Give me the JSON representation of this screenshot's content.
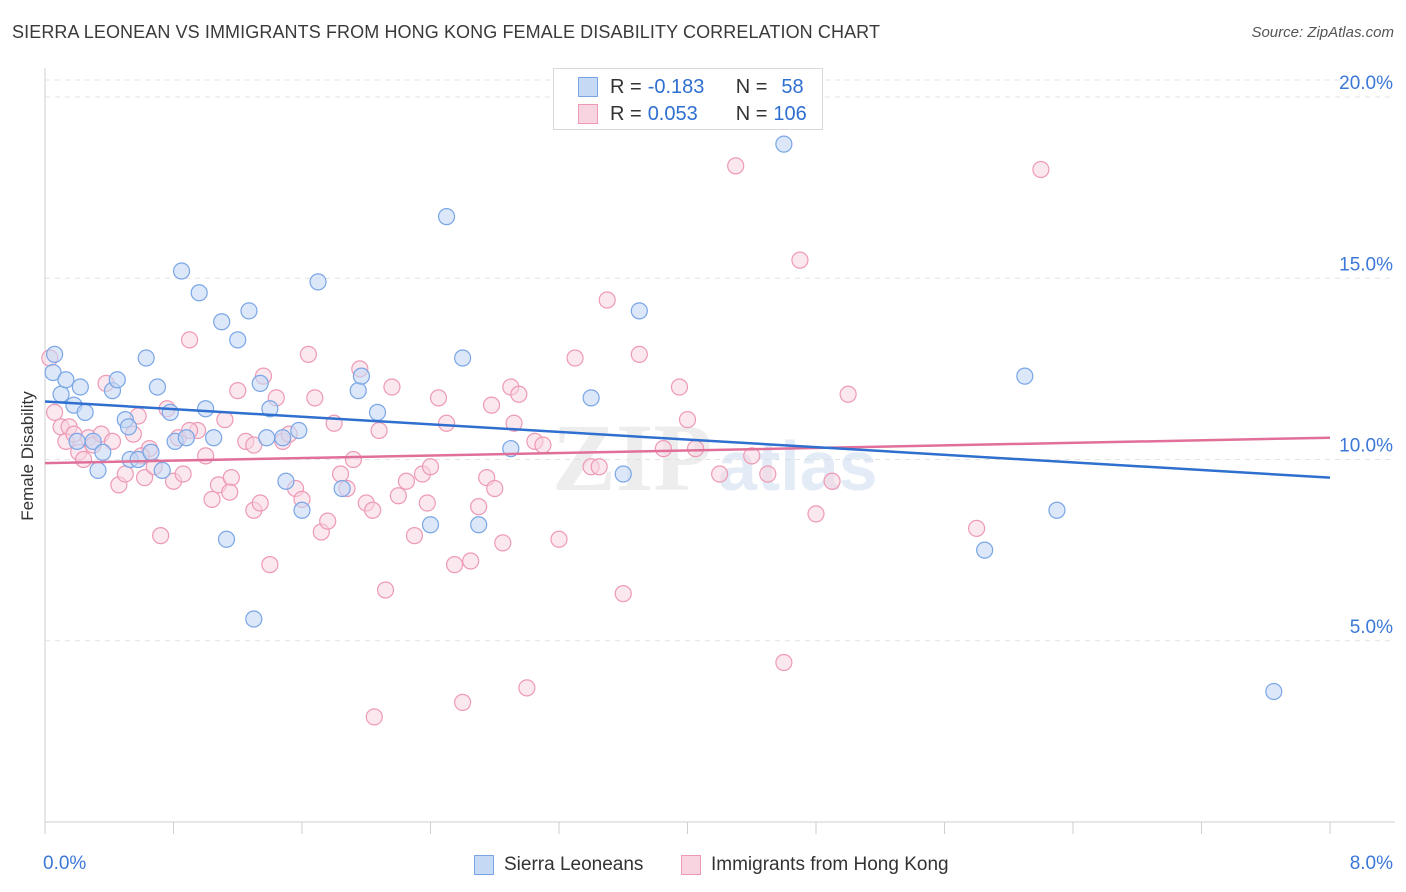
{
  "title": "SIERRA LEONEAN VS IMMIGRANTS FROM HONG KONG FEMALE DISABILITY CORRELATION CHART",
  "source": "Source: ZipAtlas.com",
  "watermark": {
    "zip": "ZIP",
    "atlas": "atlas"
  },
  "legend": {
    "row1": {
      "r_label": "R =",
      "r_value": "-0.183",
      "n_label": "N =",
      "n_value": "58"
    },
    "row2": {
      "r_label": "R =",
      "r_value": "0.053",
      "n_label": "N =",
      "n_value": "106"
    }
  },
  "bottom_legend": {
    "series1": "Sierra Leoneans",
    "series2": "Immigrants from Hong Kong"
  },
  "chart_data": {
    "type": "scatter",
    "title": "SIERRA LEONEAN VS IMMIGRANTS FROM HONG KONG FEMALE DISABILITY CORRELATION CHART",
    "xlabel": "",
    "ylabel": "Female Disability",
    "xlim": [
      0,
      8
    ],
    "ylim": [
      0,
      20.8
    ],
    "x_tick_labels": [
      "0.0%",
      "8.0%"
    ],
    "y_ticks": [
      5,
      10,
      15,
      20
    ],
    "y_tick_labels": [
      "5.0%",
      "10.0%",
      "15.0%",
      "20.0%"
    ],
    "grid": "horizontal dashed",
    "colors": {
      "series1": "#7aa6e6",
      "series1_fill": "#c5d9f5",
      "series1_line": "#2f6fcf",
      "series2": "#ee9ab5",
      "series2_fill": "#f8d3e0",
      "series2_line": "#e0709a",
      "tick_label": "#3c78d8"
    },
    "series": [
      {
        "name": "Sierra Leoneans",
        "trend": [
          [
            0,
            11.6
          ],
          [
            8,
            9.5
          ]
        ],
        "points": [
          [
            0.05,
            12.4
          ],
          [
            0.06,
            12.9
          ],
          [
            0.1,
            11.8
          ],
          [
            0.13,
            12.2
          ],
          [
            0.18,
            11.5
          ],
          [
            0.22,
            12.0
          ],
          [
            0.25,
            11.3
          ],
          [
            0.3,
            10.5
          ],
          [
            0.33,
            9.7
          ],
          [
            0.36,
            10.2
          ],
          [
            0.42,
            11.9
          ],
          [
            0.45,
            12.2
          ],
          [
            0.5,
            11.1
          ],
          [
            0.52,
            10.9
          ],
          [
            0.53,
            10.0
          ],
          [
            0.58,
            10.0
          ],
          [
            0.63,
            12.8
          ],
          [
            0.66,
            10.2
          ],
          [
            0.7,
            12.0
          ],
          [
            0.73,
            9.7
          ],
          [
            0.78,
            11.3
          ],
          [
            0.81,
            10.5
          ],
          [
            0.85,
            15.2
          ],
          [
            0.88,
            10.6
          ],
          [
            0.96,
            14.6
          ],
          [
            1.0,
            11.4
          ],
          [
            1.05,
            10.6
          ],
          [
            1.1,
            13.8
          ],
          [
            1.13,
            7.8
          ],
          [
            1.2,
            13.3
          ],
          [
            1.27,
            14.1
          ],
          [
            1.3,
            5.6
          ],
          [
            1.34,
            12.1
          ],
          [
            1.38,
            10.6
          ],
          [
            1.4,
            11.4
          ],
          [
            1.48,
            10.6
          ],
          [
            1.58,
            10.8
          ],
          [
            1.6,
            8.6
          ],
          [
            1.7,
            14.9
          ],
          [
            1.85,
            9.2
          ],
          [
            1.95,
            11.9
          ],
          [
            1.97,
            12.3
          ],
          [
            2.07,
            11.3
          ],
          [
            2.4,
            8.2
          ],
          [
            2.5,
            16.7
          ],
          [
            2.6,
            12.8
          ],
          [
            2.7,
            8.2
          ],
          [
            2.9,
            10.3
          ],
          [
            3.4,
            11.7
          ],
          [
            3.6,
            9.6
          ],
          [
            3.7,
            14.1
          ],
          [
            4.6,
            18.7
          ],
          [
            5.85,
            7.5
          ],
          [
            6.1,
            12.3
          ],
          [
            6.3,
            8.6
          ],
          [
            7.65,
            3.6
          ],
          [
            1.5,
            9.4
          ],
          [
            0.2,
            10.5
          ]
        ]
      },
      {
        "name": "Immigrants from Hong Kong",
        "trend": [
          [
            0,
            9.9
          ],
          [
            8,
            10.6
          ]
        ],
        "points": [
          [
            0.03,
            12.8
          ],
          [
            0.06,
            11.3
          ],
          [
            0.1,
            10.9
          ],
          [
            0.13,
            10.5
          ],
          [
            0.15,
            10.9
          ],
          [
            0.18,
            10.7
          ],
          [
            0.21,
            10.2
          ],
          [
            0.24,
            10.0
          ],
          [
            0.27,
            10.6
          ],
          [
            0.3,
            10.4
          ],
          [
            0.35,
            10.7
          ],
          [
            0.38,
            12.1
          ],
          [
            0.42,
            10.5
          ],
          [
            0.46,
            9.3
          ],
          [
            0.5,
            9.6
          ],
          [
            0.55,
            10.7
          ],
          [
            0.58,
            11.2
          ],
          [
            0.62,
            9.5
          ],
          [
            0.65,
            10.3
          ],
          [
            0.68,
            9.8
          ],
          [
            0.72,
            7.9
          ],
          [
            0.76,
            11.4
          ],
          [
            0.8,
            9.4
          ],
          [
            0.83,
            10.6
          ],
          [
            0.86,
            9.6
          ],
          [
            0.9,
            13.3
          ],
          [
            0.95,
            10.8
          ],
          [
            1.0,
            10.1
          ],
          [
            1.04,
            8.9
          ],
          [
            1.08,
            9.3
          ],
          [
            1.12,
            11.1
          ],
          [
            1.16,
            9.5
          ],
          [
            1.2,
            11.9
          ],
          [
            1.25,
            10.5
          ],
          [
            1.3,
            8.6
          ],
          [
            1.34,
            8.8
          ],
          [
            1.36,
            12.3
          ],
          [
            1.4,
            7.1
          ],
          [
            1.44,
            11.7
          ],
          [
            1.48,
            10.5
          ],
          [
            1.52,
            10.7
          ],
          [
            1.56,
            9.2
          ],
          [
            1.6,
            8.9
          ],
          [
            1.64,
            12.9
          ],
          [
            1.68,
            11.7
          ],
          [
            1.72,
            8.0
          ],
          [
            1.76,
            8.3
          ],
          [
            1.8,
            11.0
          ],
          [
            1.84,
            9.6
          ],
          [
            1.88,
            9.2
          ],
          [
            1.92,
            10.0
          ],
          [
            1.96,
            12.5
          ],
          [
            2.0,
            8.8
          ],
          [
            2.04,
            8.6
          ],
          [
            2.08,
            10.8
          ],
          [
            2.12,
            6.4
          ],
          [
            2.16,
            12.0
          ],
          [
            2.2,
            9.0
          ],
          [
            2.25,
            9.4
          ],
          [
            2.3,
            7.9
          ],
          [
            2.35,
            9.6
          ],
          [
            2.4,
            9.8
          ],
          [
            2.45,
            11.7
          ],
          [
            2.5,
            11.0
          ],
          [
            2.55,
            7.1
          ],
          [
            2.6,
            3.3
          ],
          [
            2.65,
            7.2
          ],
          [
            2.7,
            8.7
          ],
          [
            2.75,
            9.5
          ],
          [
            2.8,
            9.2
          ],
          [
            2.85,
            7.7
          ],
          [
            2.9,
            12.0
          ],
          [
            2.95,
            11.8
          ],
          [
            3.0,
            3.7
          ],
          [
            3.05,
            10.5
          ],
          [
            3.1,
            10.4
          ],
          [
            3.2,
            7.8
          ],
          [
            3.3,
            12.8
          ],
          [
            3.4,
            9.8
          ],
          [
            3.5,
            14.4
          ],
          [
            3.6,
            6.3
          ],
          [
            3.7,
            12.9
          ],
          [
            3.85,
            10.3
          ],
          [
            3.95,
            12.0
          ],
          [
            4.0,
            11.1
          ],
          [
            4.05,
            10.3
          ],
          [
            4.2,
            9.6
          ],
          [
            4.3,
            18.1
          ],
          [
            4.4,
            10.1
          ],
          [
            4.5,
            9.6
          ],
          [
            4.6,
            4.4
          ],
          [
            4.7,
            15.5
          ],
          [
            4.8,
            8.5
          ],
          [
            4.9,
            9.4
          ],
          [
            5.0,
            11.8
          ],
          [
            5.8,
            8.1
          ],
          [
            6.2,
            18.0
          ],
          [
            2.05,
            2.9
          ],
          [
            3.45,
            9.8
          ],
          [
            2.78,
            11.5
          ],
          [
            2.92,
            11.0
          ],
          [
            1.3,
            10.4
          ],
          [
            0.9,
            10.8
          ],
          [
            0.6,
            10.1
          ],
          [
            2.38,
            8.8
          ],
          [
            1.15,
            9.1
          ]
        ]
      }
    ]
  }
}
